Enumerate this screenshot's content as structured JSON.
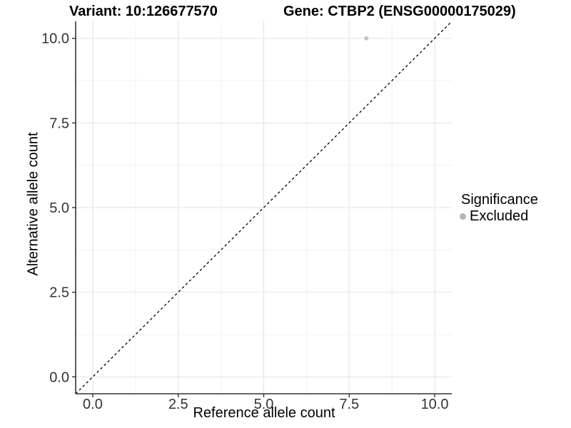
{
  "chart_data": {
    "type": "scatter",
    "variant_title": "Variant: 10:126677570",
    "gene_title": "Gene: CTBP2 (ENSG00000175029)",
    "xlabel": "Reference allele count",
    "ylabel": "Alternative allele count",
    "xlim": [
      -0.5,
      10.5
    ],
    "ylim": [
      -0.5,
      10.5
    ],
    "x_ticks": [
      0.0,
      2.5,
      5.0,
      7.5,
      10.0
    ],
    "y_ticks": [
      0.0,
      2.5,
      5.0,
      7.5,
      10.0
    ],
    "x_tick_labels": [
      "0.0",
      "2.5",
      "5.0",
      "7.5",
      "10.0"
    ],
    "y_tick_labels": [
      "0.0",
      "2.5",
      "5.0",
      "7.5",
      "10.0"
    ],
    "minor_ticks": [
      1.25,
      3.75,
      6.25,
      8.75
    ],
    "grid": true,
    "identity_line": {
      "style": "dashed",
      "from": -0.5,
      "to": 10.5,
      "color": "#000000"
    },
    "series": [
      {
        "name": "Excluded",
        "color": "#c6c6c6",
        "point_radius": 3,
        "points": [
          {
            "x": 8,
            "y": 10
          }
        ]
      }
    ],
    "legend": {
      "title": "Significance",
      "position": "right",
      "entries": [
        {
          "label": "Excluded",
          "color": "#b5b5b5"
        }
      ]
    }
  },
  "colors": {
    "background": "#ffffff",
    "grid_major": "#e3e3e3",
    "grid_minor": "#f0f0f0",
    "axis_line": "#333333",
    "tick_mark": "#333333",
    "tick_label": "#333333",
    "text": "#000000"
  }
}
